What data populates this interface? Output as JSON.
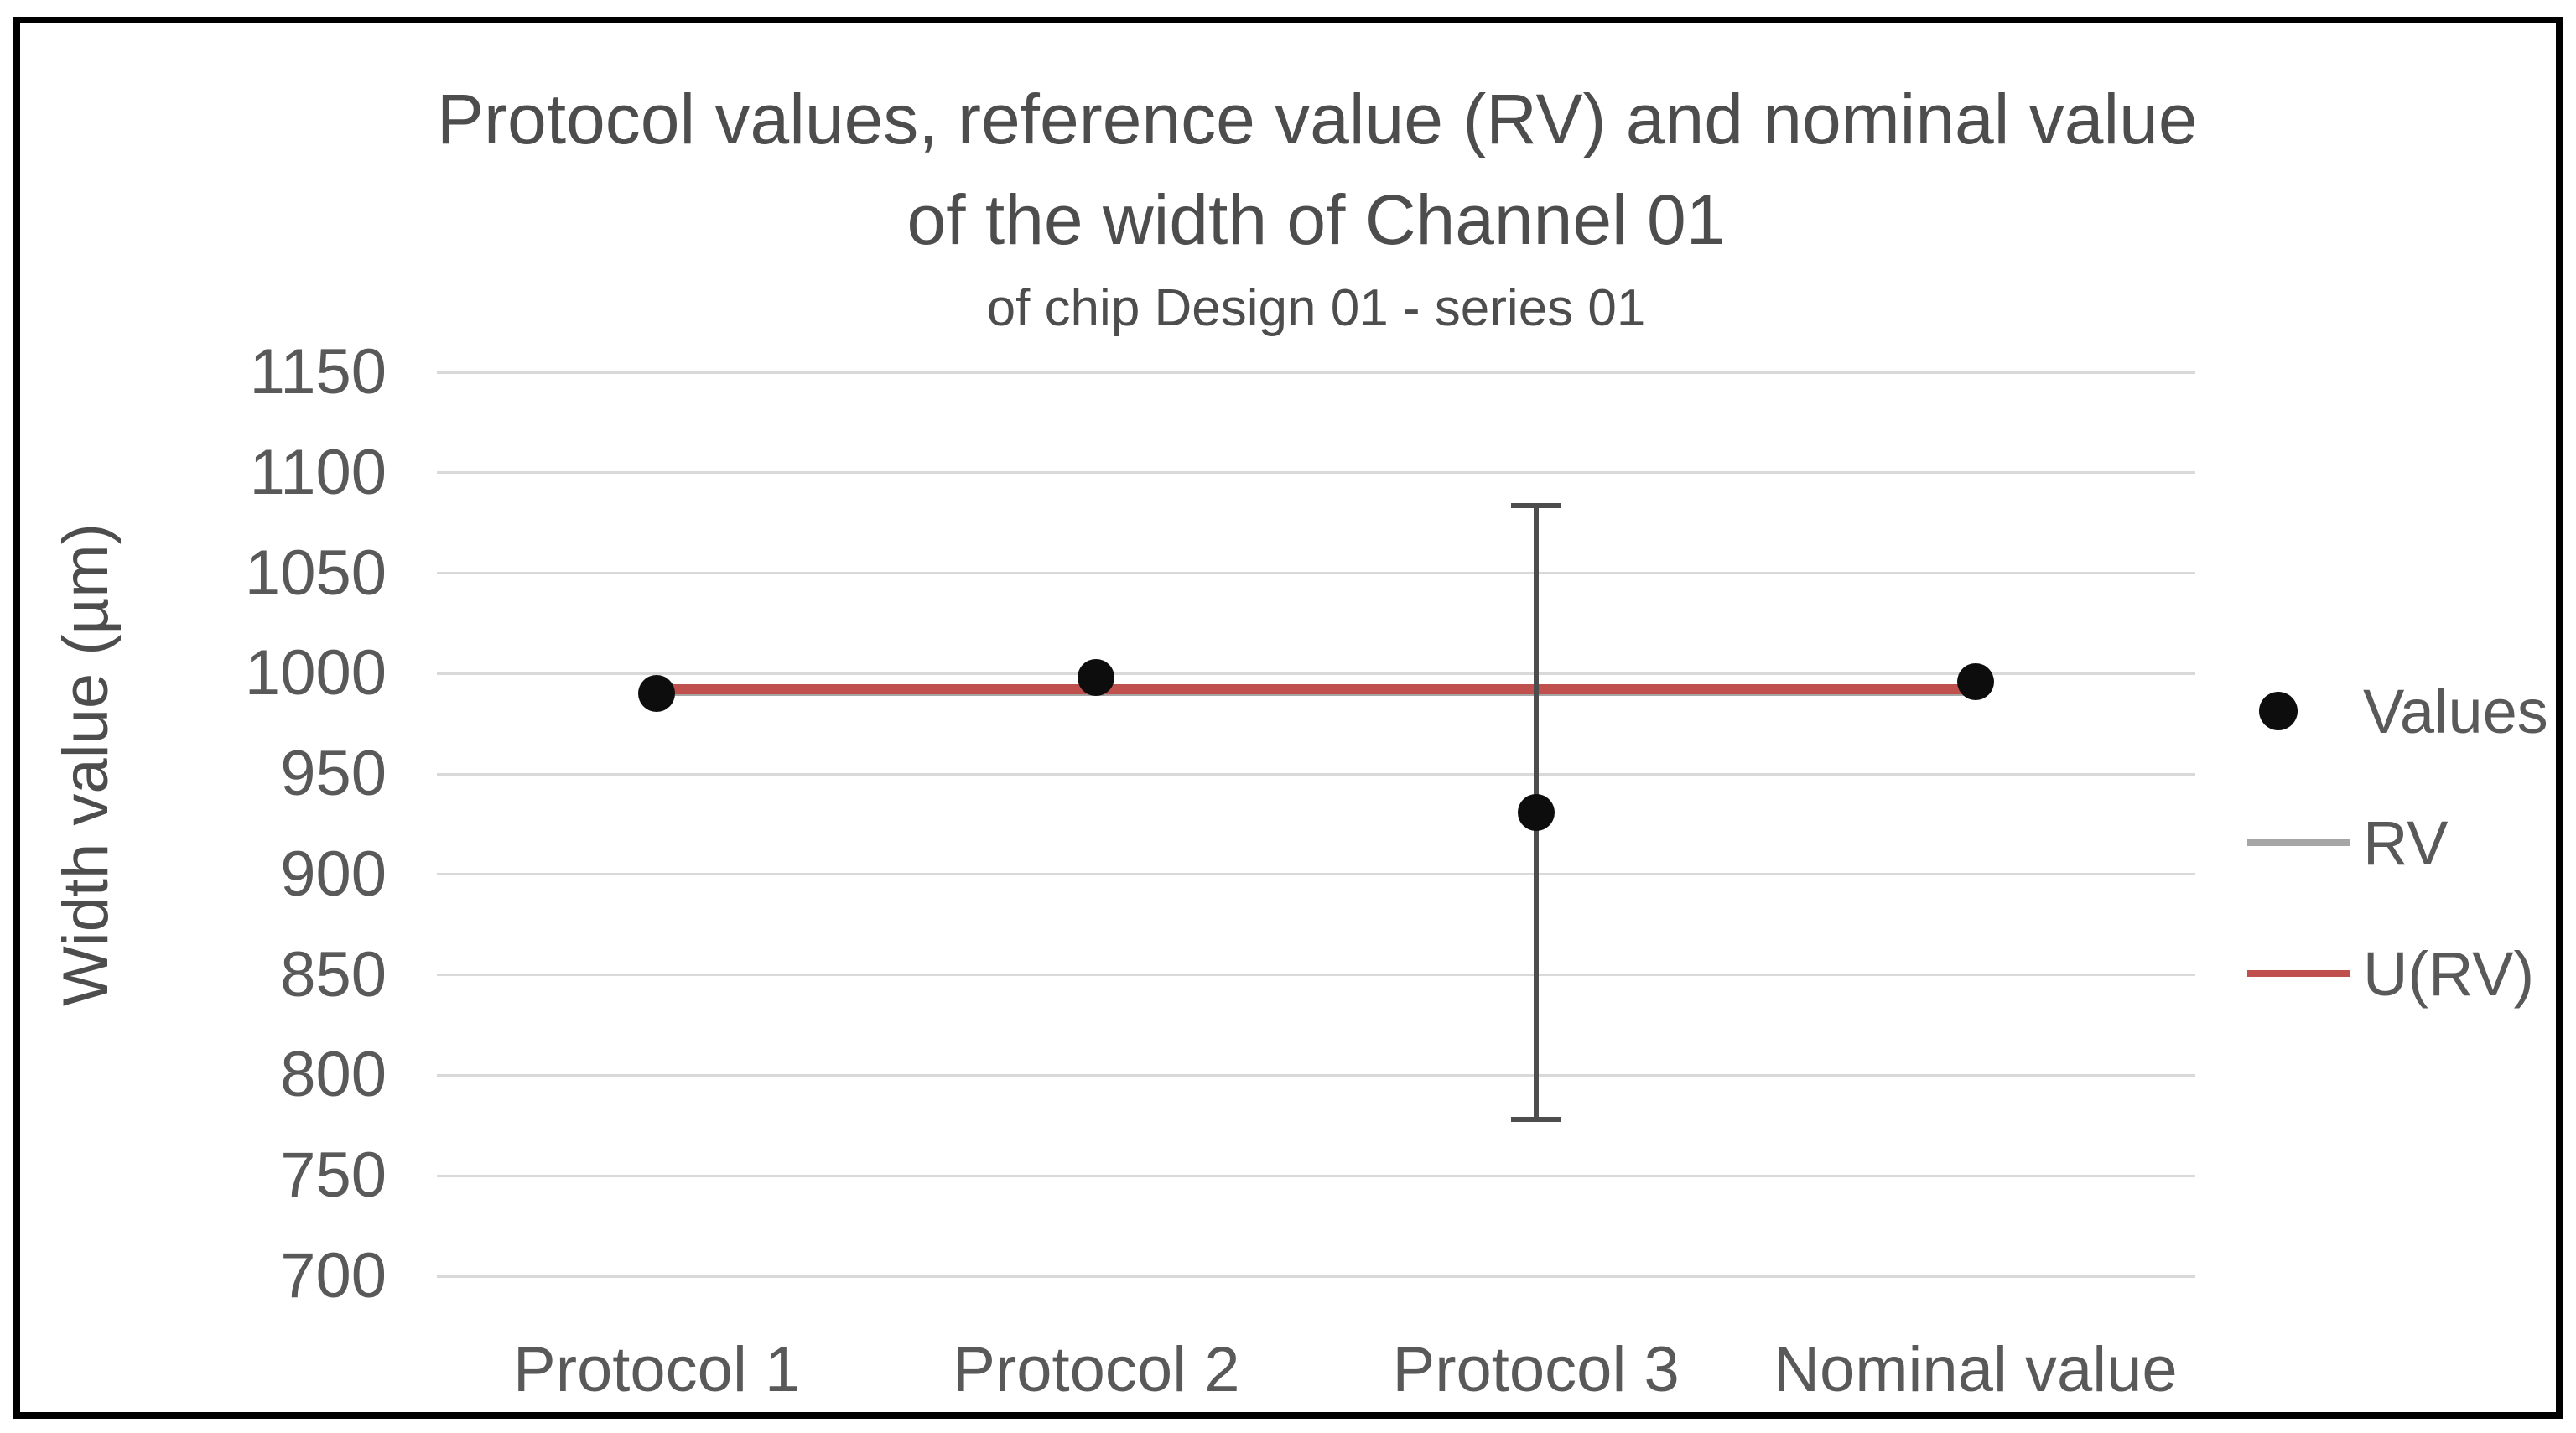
{
  "figure": {
    "background": "#ffffff",
    "border_color": "#000000"
  },
  "chart_data": {
    "type": "scatter",
    "title_line1": "Protocol values, reference value (RV) and nominal value",
    "title_line2": "of the width of Channel 01",
    "subtitle": "of chip Design 01 - series 01",
    "ylabel": "Width value (µm)",
    "xlabel": "",
    "ylim": [
      700,
      1150
    ],
    "ytick_step": 50,
    "yticks": [
      1150,
      1100,
      1050,
      1000,
      950,
      900,
      850,
      800,
      750,
      700
    ],
    "grid": true,
    "gridline_color": "#d9d9d9",
    "categories": [
      "Protocol 1",
      "Protocol 2",
      "Protocol 3",
      "Nominal value"
    ],
    "series": [
      {
        "name": "Values",
        "type": "points",
        "color": "#0d0d0d",
        "values": [
          990,
          998,
          931,
          996
        ]
      },
      {
        "name": "RV",
        "type": "hline",
        "color": "#a6a6a6",
        "value": 990,
        "span": "Protocol 1 to Nominal value"
      },
      {
        "name": "U(RV)",
        "type": "hline",
        "color": "#c0504d",
        "value": 992,
        "span": "Protocol 1 to Nominal value"
      }
    ],
    "error_bar": {
      "category": "Protocol 3",
      "center": 931,
      "low": 777,
      "high": 1085,
      "color": "#4d4d4d"
    },
    "legend": {
      "position": "right",
      "entries": [
        {
          "label": "Values",
          "marker": "dot",
          "color": "#0d0d0d"
        },
        {
          "label": "RV",
          "marker": "line",
          "color": "#a6a6a6"
        },
        {
          "label": "U(RV)",
          "marker": "line",
          "color": "#c0504d"
        }
      ]
    }
  }
}
